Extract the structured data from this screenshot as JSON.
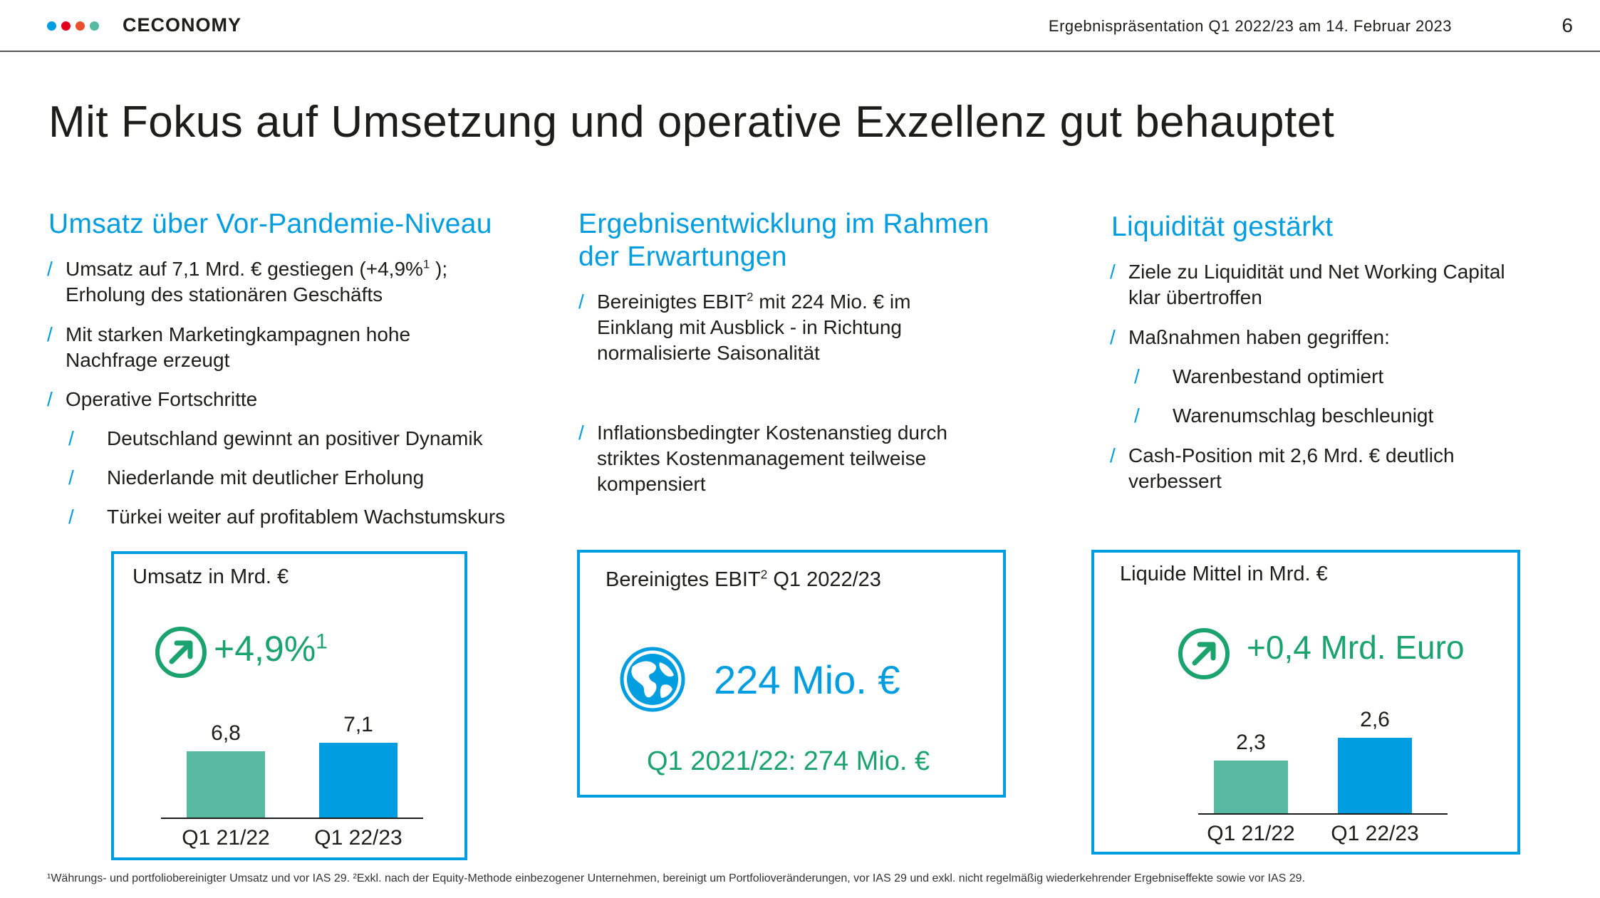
{
  "header": {
    "brand": "CECONOMY",
    "presentation_title": "Ergebnispräsentation Q1 2022/23 am 14. Februar 2023",
    "page_number": "6",
    "logo_dot_colors": [
      "#009de0",
      "#e2001a",
      "#e8502e",
      "#57b9a1"
    ]
  },
  "slide_title": "Mit Fokus auf Umsetzung und operative Exzellenz gut behauptet",
  "columns": {
    "left": {
      "heading": "Umsatz über Vor-Pandemie-Niveau",
      "b1_line1": "Umsatz auf 7,1 Mrd. € gestiegen (+4,9%",
      "b1_sup": "1",
      "b1_line1_end": " );",
      "b1_line2": "Erholung des stationären Geschäfts",
      "b2_line1": "Mit starken Marketingkampagnen hohe",
      "b2_line2": "Nachfrage erzeugt",
      "b3": "Operative Fortschritte",
      "sub1": "Deutschland gewinnt an positiver Dynamik",
      "sub2": "Niederlande mit deutlicher Erholung",
      "sub3": "Türkei weiter auf profitablem Wachstumskurs"
    },
    "middle": {
      "heading_line1": "Ergebnisentwicklung im Rahmen",
      "heading_line2": "der Erwartungen",
      "b1_pre": "Bereinigtes EBIT",
      "b1_sup": "2",
      "b1_post": " mit 224 Mio. € im",
      "b1_line2": "Einklang mit Ausblick - in Richtung",
      "b1_line3": "normalisierte Saisonalität",
      "b2_line1": "Inflationsbedingter Kostenanstieg durch",
      "b2_line2": "striktes Kostenmanagement teilweise",
      "b2_line3": "kompensiert"
    },
    "right": {
      "heading": "Liquidität gestärkt",
      "b1_line1": "Ziele zu Liquidität und Net Working Capital",
      "b1_line2": "klar übertroffen",
      "b2": "Maßnahmen haben gegriffen:",
      "sub1": "Warenbestand optimiert",
      "sub2": "Warenumschlag beschleunigt",
      "b3_line1": "Cash-Position mit 2,6 Mrd. € deutlich",
      "b3_line2": "verbessert"
    }
  },
  "boxes": {
    "sales": {
      "title": "Umsatz in Mrd. €",
      "growth": "+4,9%",
      "growth_sup": "1"
    },
    "ebit": {
      "title_pre": "Bereinigtes EBIT",
      "title_sup": "2",
      "title_post": " Q1 2022/23",
      "kpi": "224 Mio. €",
      "prev": "Q1 2021/22: 274 Mio. €"
    },
    "cash": {
      "title": "Liquide Mittel in Mrd. €",
      "growth": "+0,4 Mrd. Euro"
    }
  },
  "chart_data": [
    {
      "type": "bar",
      "title": "Umsatz in Mrd. €",
      "categories": [
        "Q1 21/22",
        "Q1 22/23"
      ],
      "values": [
        6.8,
        7.1
      ],
      "value_labels": [
        "6,8",
        "7,1"
      ],
      "colors": [
        "#57b9a1",
        "#009de0"
      ]
    },
    {
      "type": "bar",
      "title": "Liquide Mittel in Mrd. €",
      "categories": [
        "Q1 21/22",
        "Q1 22/23"
      ],
      "values": [
        2.3,
        2.6
      ],
      "value_labels": [
        "2,3",
        "2,6"
      ],
      "colors": [
        "#57b9a1",
        "#009de0"
      ]
    }
  ],
  "footnote": "¹Währungs- und portfoliobereinigter Umsatz und vor IAS 29.  ²Exkl. nach der Equity-Methode einbezogener Unternehmen, bereinigt um Portfolioveränderungen, vor IAS 29 und exkl. nicht regelmäßig wiederkehrender Ergebniseffekte sowie vor IAS 29."
}
